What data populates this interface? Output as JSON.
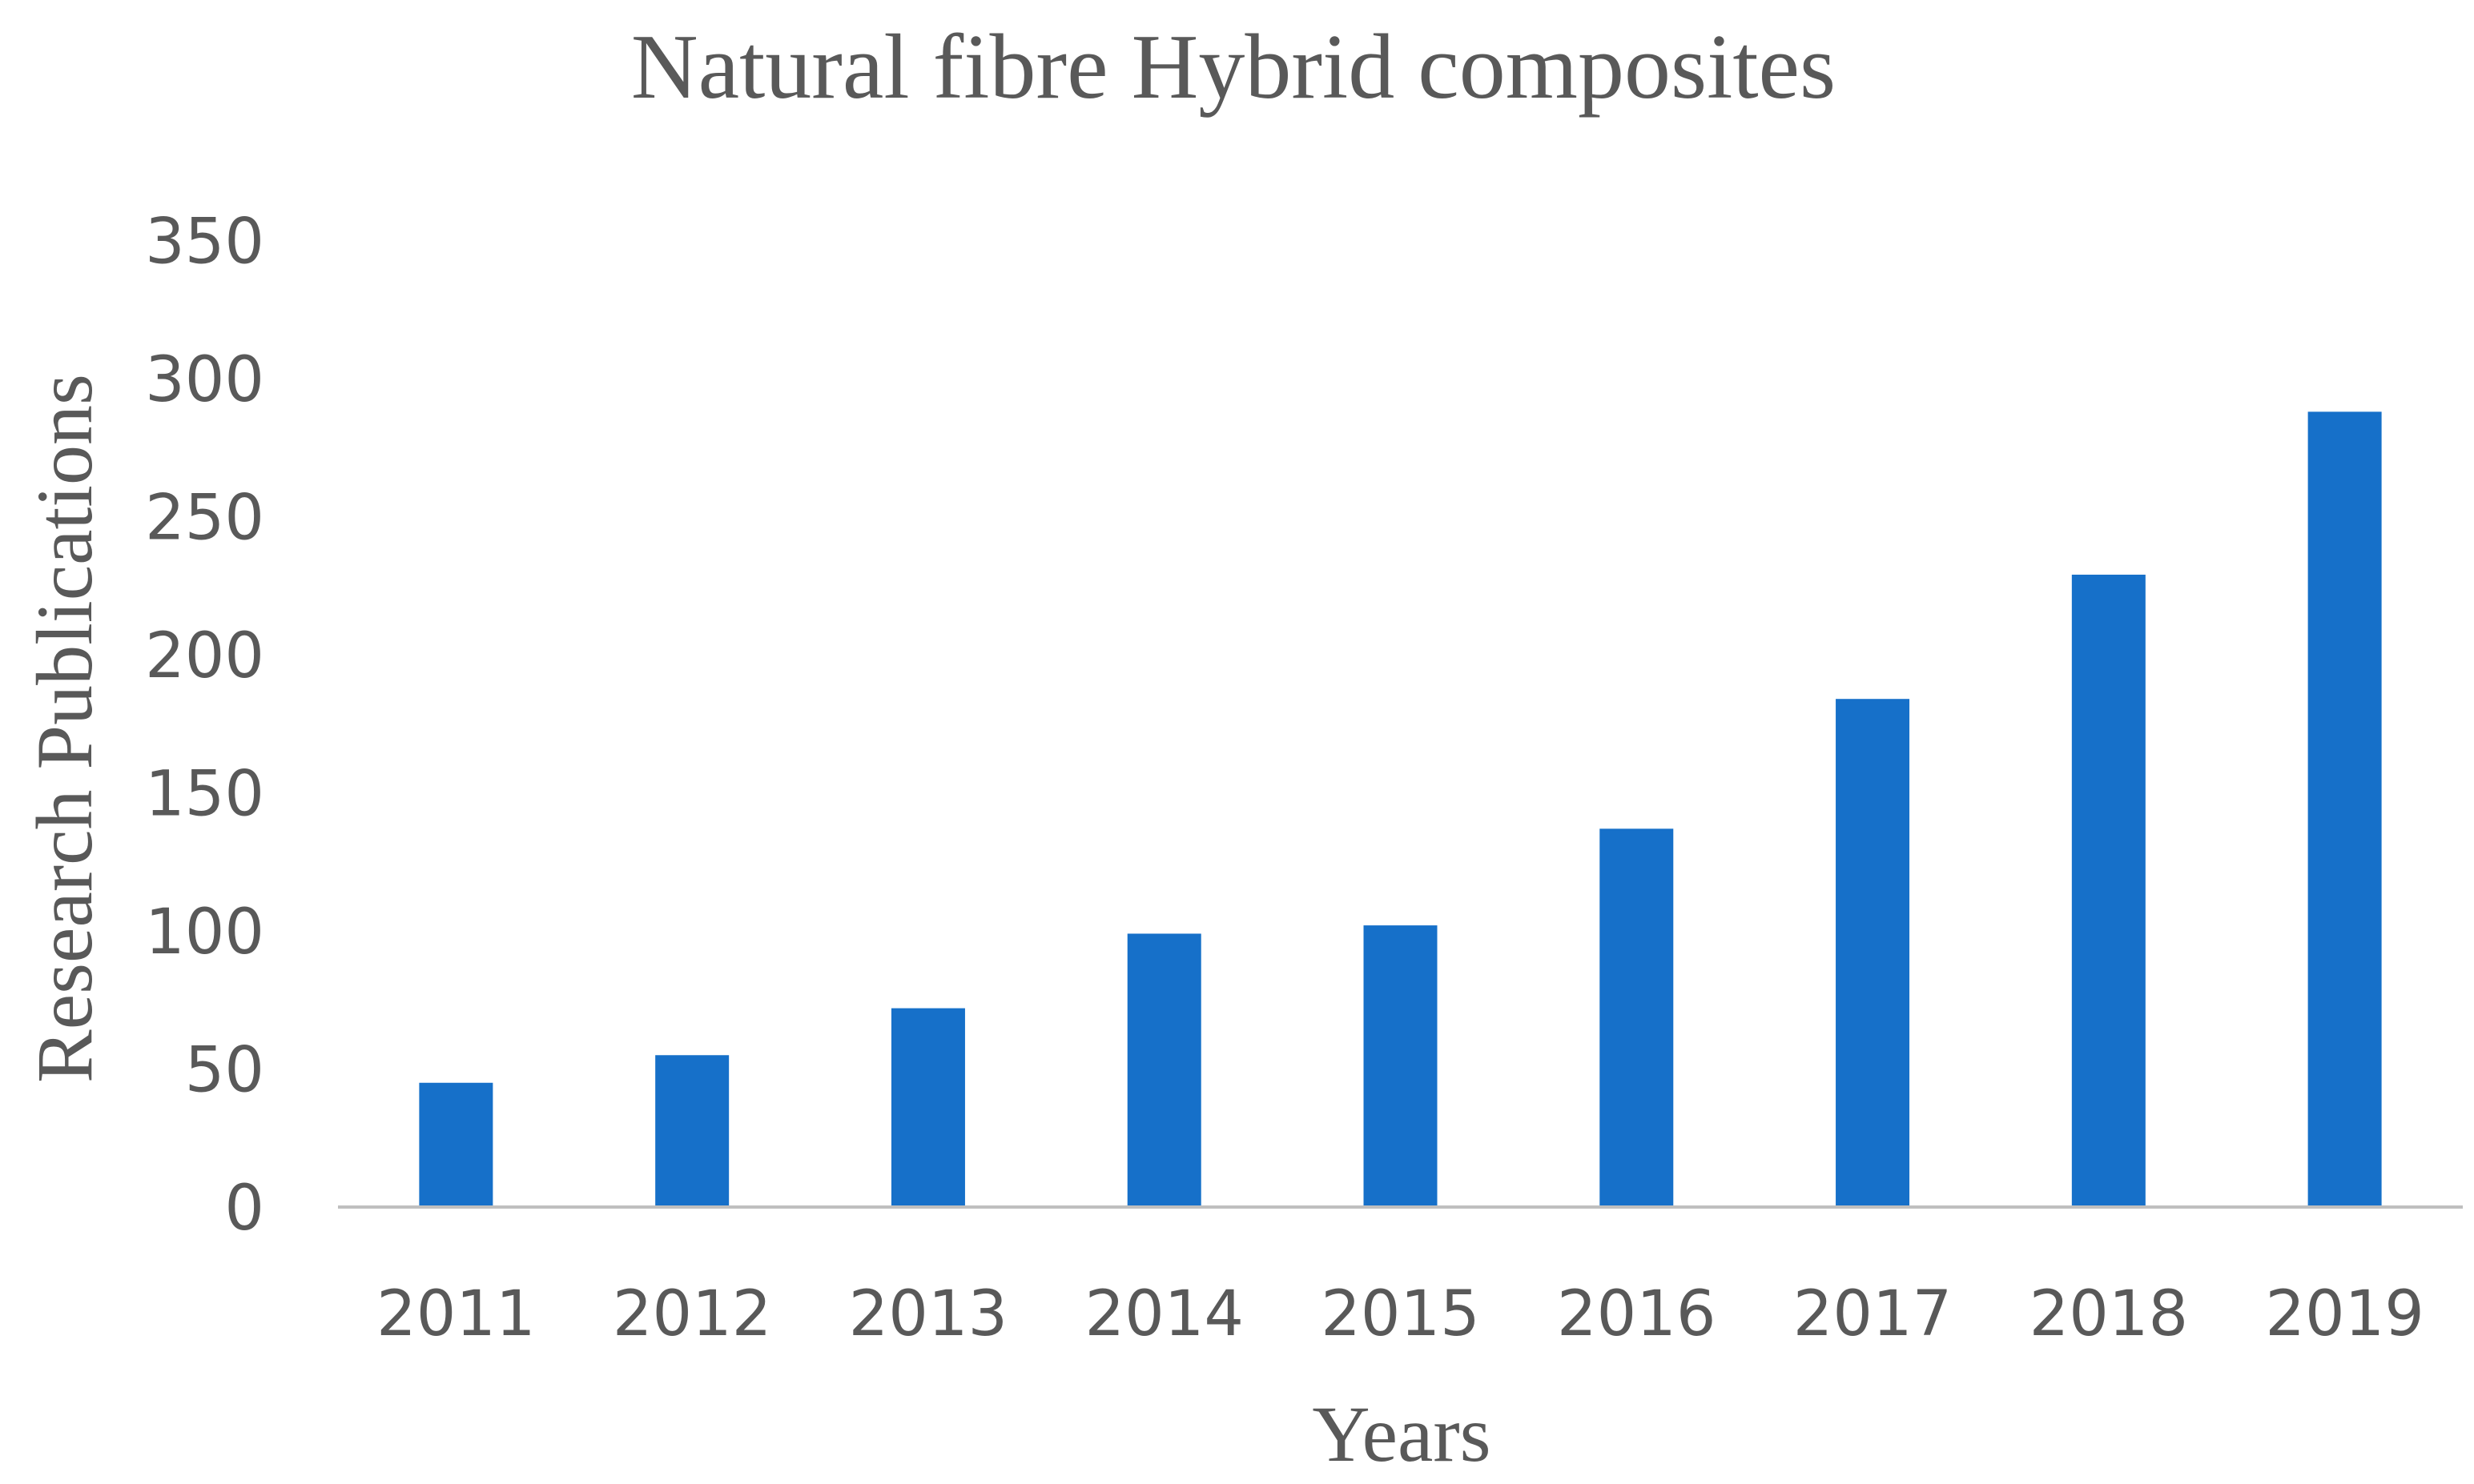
{
  "chart_data": {
    "type": "bar",
    "title": "Natural fibre Hybrid composites",
    "xlabel": "Years",
    "ylabel": "Research Publications",
    "categories": [
      "2011",
      "2012",
      "2013",
      "2014",
      "2015",
      "2016",
      "2017",
      "2018",
      "2019"
    ],
    "values": [
      45,
      55,
      72,
      99,
      102,
      137,
      184,
      229,
      288
    ],
    "ylim": [
      0,
      350
    ],
    "yticks": [
      0,
      50,
      100,
      150,
      200,
      250,
      300,
      350
    ],
    "grid": false,
    "legend": "none",
    "bar_color": "#1670c9",
    "axis_color": "#bfbfbf"
  }
}
